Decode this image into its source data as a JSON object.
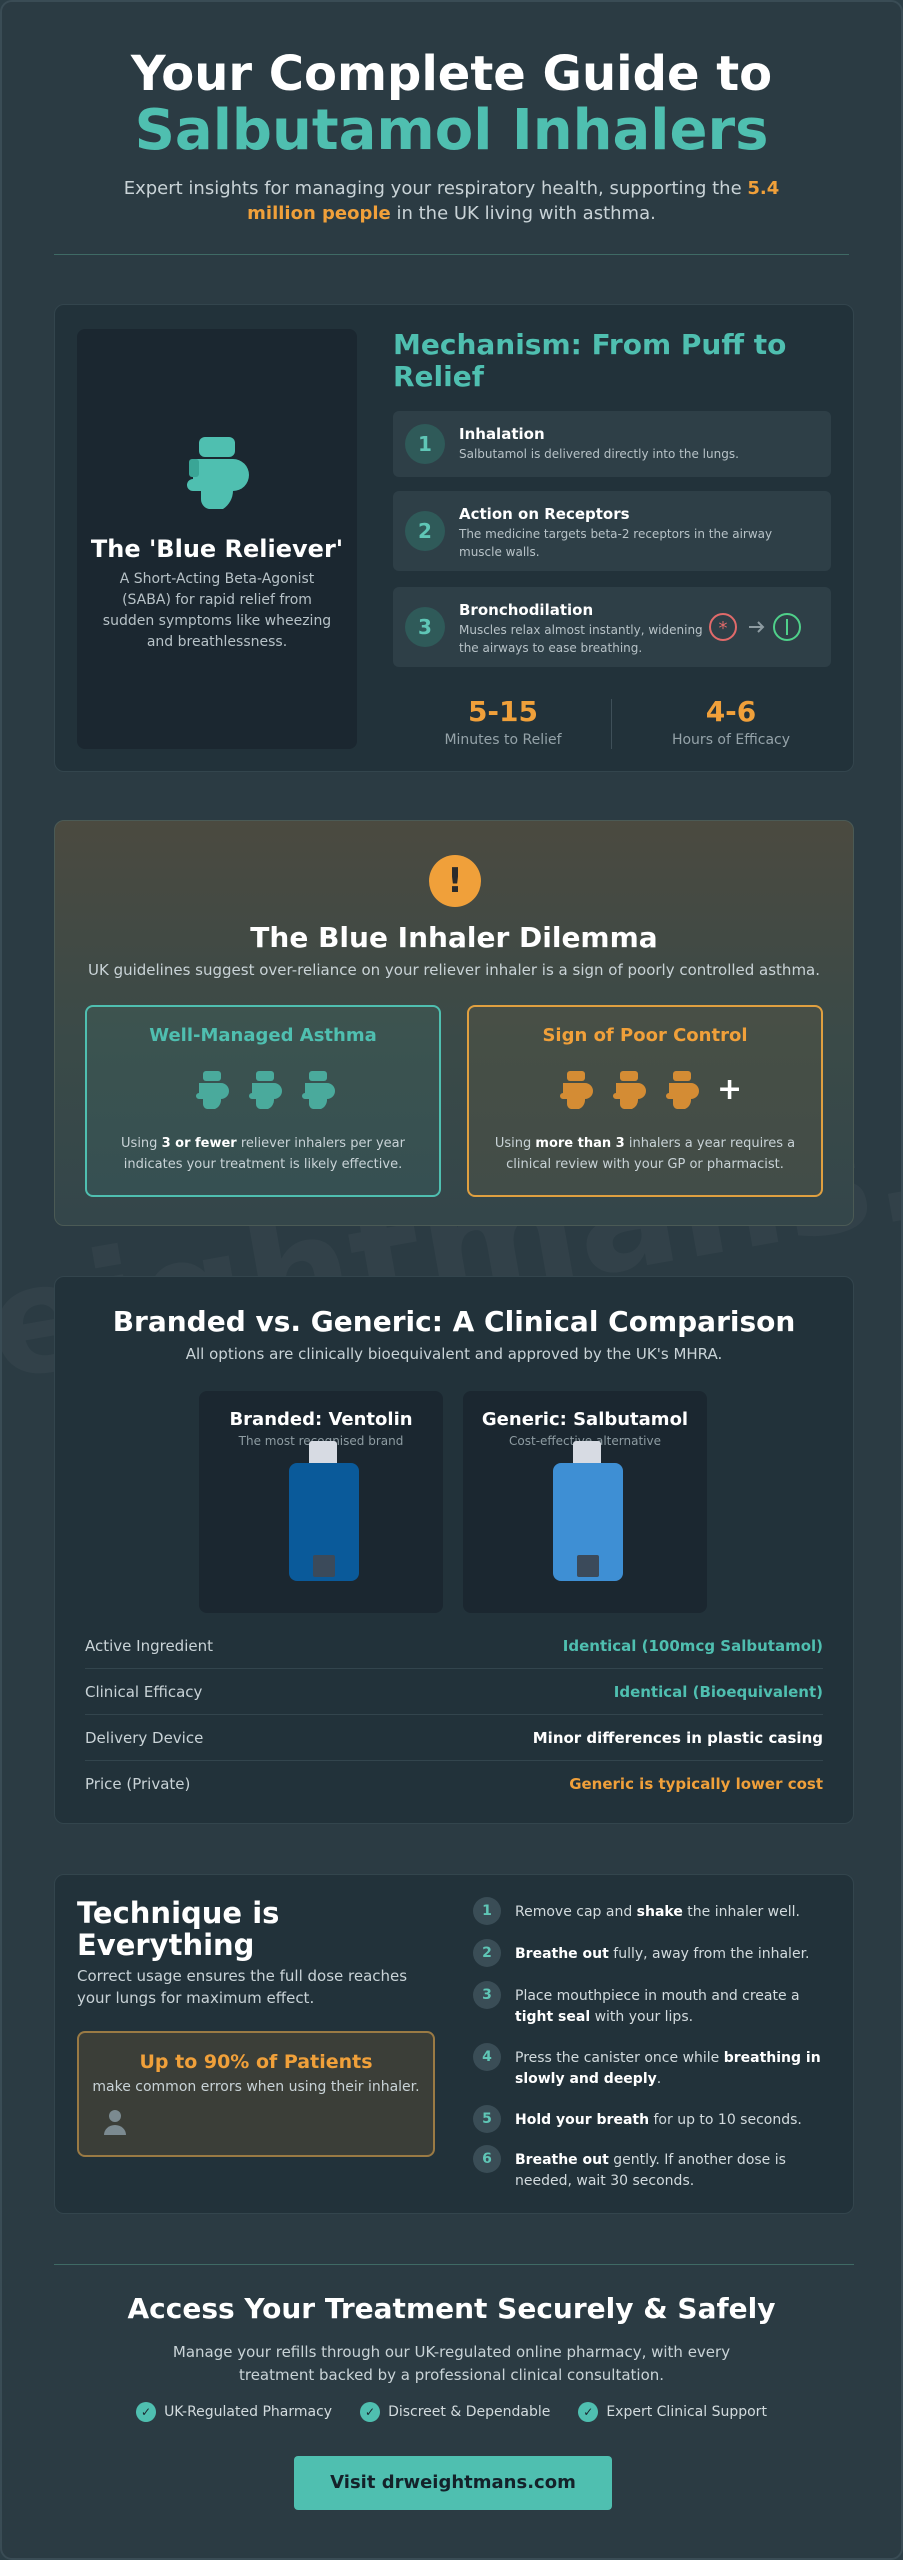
{
  "watermark": "eightmans.c",
  "hero": {
    "title_line1": "Your Complete Guide to",
    "title_line2": "Salbutamol Inhalers",
    "subtitle_pre": "Expert insights for managing your respiratory health, supporting the ",
    "subtitle_highlight": "5.4 million people",
    "subtitle_post": " in the UK living with asthma."
  },
  "mechanism": {
    "reliever_title": "The 'Blue Reliever'",
    "reliever_desc": "A Short-Acting Beta-Agonist (SABA) for rapid relief from sudden symptoms like wheezing and breathlessness.",
    "title": "Mechanism: From Puff to Relief",
    "steps": [
      {
        "num": "1",
        "title": "Inhalation",
        "desc": "Salbutamol is delivered directly into the lungs."
      },
      {
        "num": "2",
        "title": "Action on Receptors",
        "desc": "The medicine targets beta-2 receptors in the airway muscle walls."
      },
      {
        "num": "3",
        "title": "Bronchodilation",
        "desc": "Muscles relax almost instantly, widening the airways to ease breathing."
      }
    ],
    "stats": [
      {
        "value": "5-15",
        "label": "Minutes to Relief"
      },
      {
        "value": "4-6",
        "label": "Hours of Efficacy"
      }
    ],
    "colors": {
      "accent": "#4fbfb0",
      "highlight": "#f0a03a"
    }
  },
  "dilemma": {
    "icon": "!",
    "title": "The Blue Inhaler Dilemma",
    "subtitle": "UK guidelines suggest over-reliance on your reliever inhaler is a sign of poorly controlled asthma.",
    "good": {
      "title": "Well-Managed Asthma",
      "text_pre": "Using ",
      "text_bold": "3 or fewer",
      "text_post": " reliever inhalers per year indicates your treatment is likely effective."
    },
    "bad": {
      "title": "Sign of Poor Control",
      "plus": "+",
      "text_pre": "Using ",
      "text_bold": "more than 3",
      "text_post": " inhalers a year requires a clinical review with your GP or pharmacist."
    }
  },
  "comparison": {
    "title": "Branded vs. Generic: A Clinical Comparison",
    "subtitle": "All options are clinically bioequivalent and approved by the UK's MHRA.",
    "products": [
      {
        "name": "Branded: Ventolin",
        "desc": "The most recognised brand",
        "color": "#0a5a9a"
      },
      {
        "name": "Generic: Salbutamol",
        "desc": "Cost-effective alternative",
        "color": "#3e8fd4"
      }
    ],
    "rows": [
      {
        "label": "Active Ingredient",
        "value": "Identical (100mcg Salbutamol)",
        "tone": "teal"
      },
      {
        "label": "Clinical Efficacy",
        "value": "Identical (Bioequivalent)",
        "tone": "teal"
      },
      {
        "label": "Delivery Device",
        "value": "Minor differences in plastic casing",
        "tone": "white"
      },
      {
        "label": "Price (Private)",
        "value": "Generic is typically lower cost",
        "tone": "orange"
      }
    ]
  },
  "technique": {
    "title": "Technique is Everything",
    "subtitle": "Correct usage ensures the full dose reaches your lungs for maximum effect.",
    "callout_title": "Up to 90% of Patients",
    "callout_text": "make common errors when using their inhaler.",
    "steps": [
      {
        "num": "1",
        "pre": "Remove cap and ",
        "bold": "shake",
        "post": " the inhaler well."
      },
      {
        "num": "2",
        "pre": "",
        "bold": "Breathe out",
        "post": " fully, away from the inhaler."
      },
      {
        "num": "3",
        "pre": "Place mouthpiece in mouth and create a ",
        "bold": "tight seal",
        "post": " with your lips."
      },
      {
        "num": "4",
        "pre": "Press the canister once while ",
        "bold": "breathing in slowly and deeply",
        "post": "."
      },
      {
        "num": "5",
        "pre": "",
        "bold": "Hold your breath",
        "post": " for up to 10 seconds."
      },
      {
        "num": "6",
        "pre": "",
        "bold": "Breathe out",
        "post": " gently. If another dose is needed, wait 30 seconds."
      }
    ]
  },
  "cta": {
    "title": "Access Your Treatment Securely & Safely",
    "text": "Manage your refills through our UK-regulated online pharmacy, with every treatment backed by a professional clinical consultation.",
    "badges": [
      "UK-Regulated Pharmacy",
      "Discreet & Dependable",
      "Expert Clinical Support"
    ],
    "check": "✓",
    "button": "Visit drweightmans.com"
  }
}
